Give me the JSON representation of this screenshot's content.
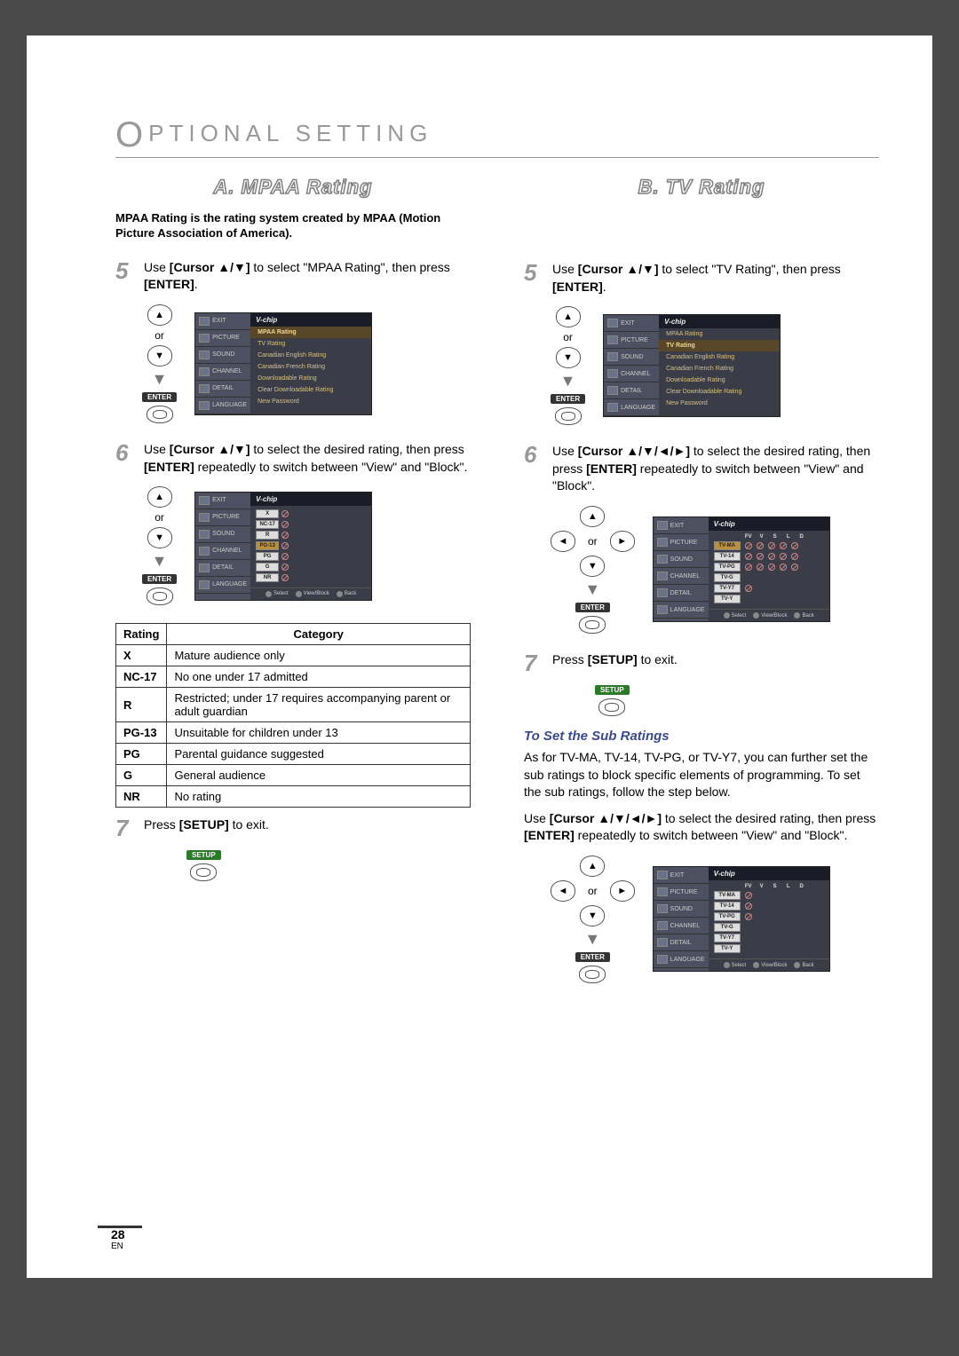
{
  "header": {
    "title": "PTIONAL SETTING"
  },
  "columnA": {
    "section_title": "A. MPAA Rating",
    "intro": "MPAA Rating is the rating system created by MPAA (Motion Picture Association of America).",
    "step5": {
      "prefix": "Use ",
      "cursor": "[Cursor ▲/▼]",
      "mid": " to select \"MPAA Rating\", then press ",
      "enter": "[ENTER]",
      "suffix": "."
    },
    "step6": {
      "prefix": "Use ",
      "cursor": "[Cursor ▲/▼]",
      "mid": " to select the desired rating, then press ",
      "enter": "[ENTER]",
      "suffix": " repeatedly to switch between \"View\" and \"Block\"."
    },
    "step7": {
      "prefix": "Press ",
      "setup": "[SETUP]",
      "suffix": " to exit."
    },
    "osd_side": [
      "EXIT",
      "PICTURE",
      "SOUND",
      "CHANNEL",
      "DETAIL",
      "LANGUAGE"
    ],
    "osd1": {
      "title": "V-chip",
      "items": [
        "MPAA Rating",
        "TV Rating",
        "Canadian English Rating",
        "Canadian French Rating",
        "Downloadable Rating",
        "Clear Downloadable Rating",
        "New Password"
      ],
      "highlight_index": 0
    },
    "osd2": {
      "title": "V-chip",
      "ratings": [
        "X",
        "NC-17",
        "R",
        "PG-13",
        "PG",
        "G",
        "NR"
      ],
      "highlight_index": 3
    },
    "rating_table": {
      "headers": [
        "Rating",
        "Category"
      ],
      "rows": [
        [
          "X",
          "Mature audience only"
        ],
        [
          "NC-17",
          "No one under 17 admitted"
        ],
        [
          "R",
          "Restricted; under 17 requires accompanying parent or adult guardian"
        ],
        [
          "PG-13",
          "Unsuitable for children under 13"
        ],
        [
          "PG",
          "Parental guidance suggested"
        ],
        [
          "G",
          "General audience"
        ],
        [
          "NR",
          "No rating"
        ]
      ]
    }
  },
  "columnB": {
    "section_title": "B. TV Rating",
    "step5": {
      "prefix": "Use ",
      "cursor": "[Cursor ▲/▼]",
      "mid": " to select \"TV Rating\", then press ",
      "enter": "[ENTER]",
      "suffix": "."
    },
    "step6": {
      "prefix": "Use ",
      "cursor": "[Cursor ▲/▼/◄/►]",
      "mid": " to select the desired rating, then press ",
      "enter": "[ENTER]",
      "suffix": " repeatedly to switch between \"View\" and \"Block\"."
    },
    "step7": {
      "prefix": "Press ",
      "setup": "[SETUP]",
      "suffix": " to exit."
    },
    "osd1": {
      "title": "V-chip",
      "items": [
        "MPAA Rating",
        "TV Rating",
        "Canadian English Rating",
        "Canadian French Rating",
        "Downloadable Rating",
        "Clear Downloadable Rating",
        "New Password"
      ],
      "highlight_index": 1
    },
    "osd2": {
      "title": "V-chip",
      "col_heads": [
        "FV",
        "V",
        "S",
        "L",
        "D"
      ],
      "rows": [
        "TV-MA",
        "TV-14",
        "TV-PG",
        "TV-G",
        "TV-Y7",
        "TV-Y"
      ],
      "highlight_index": 0,
      "footer": [
        "Select",
        "View/Block",
        "Back"
      ]
    },
    "sub": {
      "heading": "To Set the Sub Ratings",
      "text": "As for TV-MA, TV-14, TV-PG, or TV-Y7, you can further set the sub ratings to block specific elements of programming. To set the sub ratings, follow the step below.",
      "instr_prefix": "Use ",
      "instr_cursor": "[Cursor ▲/▼/◄/►]",
      "instr_mid": " to select the desired rating, then press ",
      "instr_enter": "[ENTER]",
      "instr_suffix": " repeatedly to switch between \"View\" and \"Block\"."
    },
    "osd3": {
      "title": "V-chip",
      "col_heads": [
        "FV",
        "V",
        "S",
        "L",
        "D"
      ],
      "rows": [
        "TV-MA",
        "TV-14",
        "TV-PG",
        "TV-G",
        "TV-Y7",
        "TV-Y"
      ],
      "footer": [
        "Select",
        "View/Block",
        "Back"
      ]
    }
  },
  "labels": {
    "or": "or",
    "enter": "ENTER",
    "setup": "SETUP"
  },
  "osd_footer": {
    "select": "Select",
    "view": "View/Block",
    "back": "Back"
  },
  "page": {
    "num": "28",
    "lang": "EN"
  }
}
